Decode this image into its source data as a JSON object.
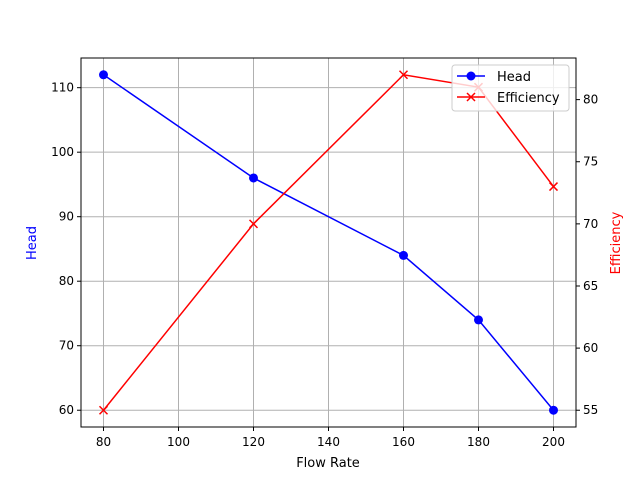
{
  "chart_data": {
    "type": "line",
    "title": "",
    "xlabel": "Flow Rate",
    "ylabel": "Head",
    "y2label": "Efficiency",
    "x": [
      80,
      120,
      160,
      180,
      200
    ],
    "xlim": [
      74,
      206
    ],
    "ylim": [
      57.4,
      114.6
    ],
    "y2lim": [
      53.65,
      83.35
    ],
    "xticks": [
      80,
      100,
      120,
      140,
      160,
      180,
      200
    ],
    "yticks": [
      60,
      70,
      80,
      90,
      100,
      110
    ],
    "y2ticks": [
      55,
      60,
      65,
      70,
      75,
      80
    ],
    "grid": true,
    "legend_position": "upper right",
    "series": [
      {
        "name": "Head",
        "axis": "left",
        "color": "#0000ff",
        "marker": "circle",
        "values": [
          112,
          96,
          84,
          74,
          60
        ]
      },
      {
        "name": "Efficiency",
        "axis": "right",
        "color": "#ff0000",
        "marker": "x",
        "values": [
          55,
          70,
          82,
          81,
          73
        ]
      }
    ]
  },
  "labels": {
    "xlabel": "Flow Rate",
    "ylabel": "Head",
    "y2label": "Efficiency",
    "legend": [
      "Head",
      "Efficiency"
    ]
  }
}
